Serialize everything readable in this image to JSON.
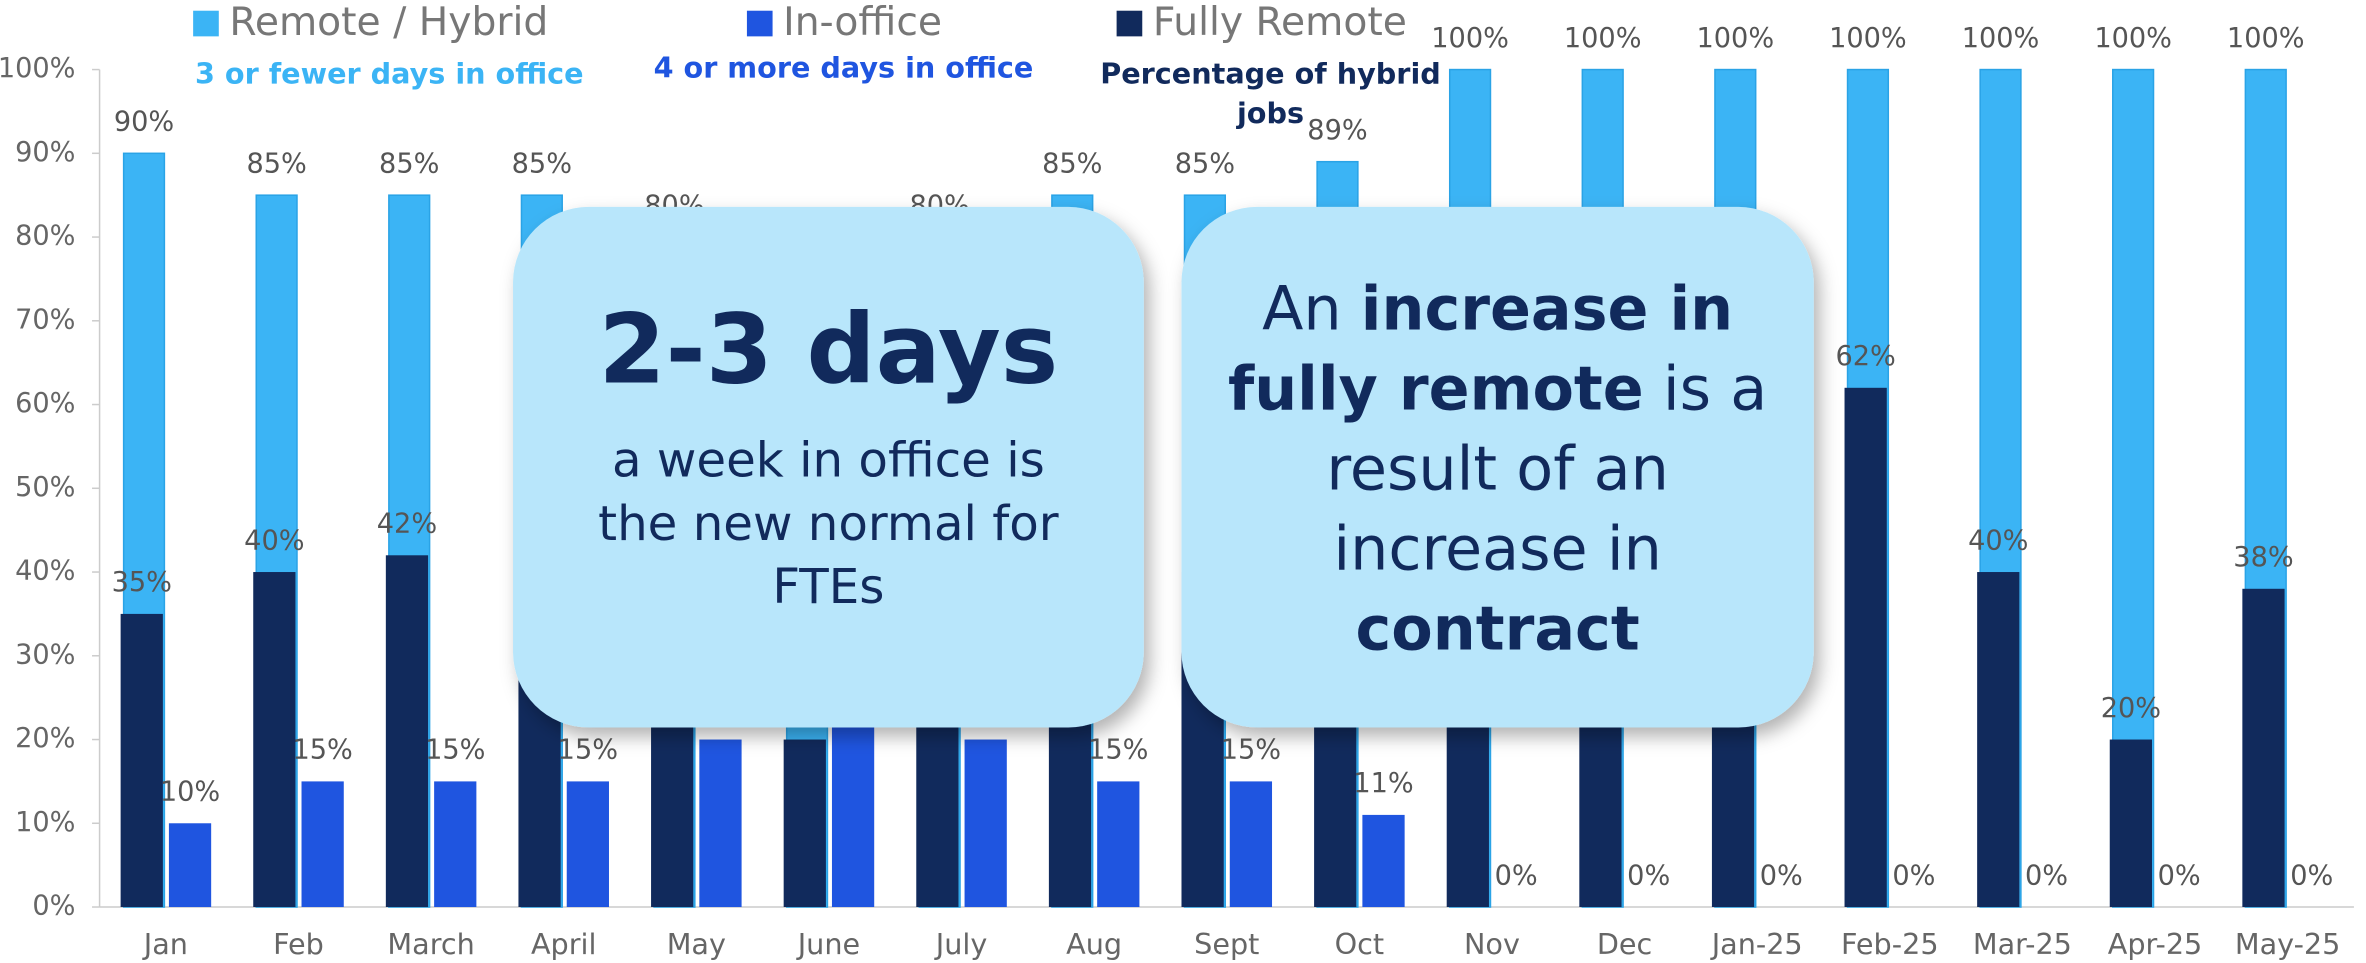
{
  "chart_data": {
    "type": "bar",
    "categories": [
      "Jan",
      "Feb",
      "March",
      "April",
      "May",
      "June",
      "July",
      "Aug",
      "Sept",
      "Oct",
      "Nov",
      "Dec",
      "Jan-25",
      "Feb-25",
      "Mar-25",
      "Apr-25",
      "May-25"
    ],
    "series": [
      {
        "name": "Remote / Hybrid",
        "sublabel": [
          "3 or fewer days in office"
        ],
        "color": "#3bb4f5",
        "layer": "back",
        "values": [
          90,
          85,
          85,
          85,
          80,
          80,
          80,
          85,
          85,
          89,
          100,
          100,
          100,
          100,
          100,
          100,
          100
        ],
        "value_labels": [
          "90%",
          "85%",
          "85%",
          "85%",
          "80%",
          null,
          "80%",
          "85%",
          "85%",
          "89%",
          "100%",
          "100%",
          "100%",
          "100%",
          "100%",
          "100%",
          "100%"
        ]
      },
      {
        "name": "In-office",
        "sublabel": [
          "4 or more days in office"
        ],
        "color": "#1f55e0",
        "layer": "side",
        "values": [
          10,
          15,
          15,
          15,
          20,
          22,
          20,
          15,
          15,
          11,
          0,
          0,
          0,
          0,
          0,
          0,
          0
        ],
        "value_labels": [
          "10%",
          "15%",
          "15%",
          "15%",
          null,
          null,
          null,
          "15%",
          "15%",
          "11%",
          "0%",
          "0%",
          "0%",
          "0%",
          "0%",
          "0%",
          "0%"
        ]
      },
      {
        "name": "Fully Remote",
        "sublabel": [
          "Percentage of hybrid",
          "jobs"
        ],
        "color": "#112a5c",
        "layer": "front",
        "values": [
          35,
          40,
          42,
          40,
          40,
          20,
          40,
          40,
          40,
          40,
          45,
          45,
          45,
          62,
          40,
          20,
          38
        ],
        "value_labels": [
          "35%",
          "40%",
          "42%",
          null,
          null,
          null,
          null,
          null,
          null,
          null,
          null,
          null,
          null,
          "62%",
          "40%",
          "20%",
          "38%"
        ]
      }
    ],
    "ylim": [
      0,
      100
    ],
    "yticks": [
      {
        "value": 0,
        "label": "0%"
      },
      {
        "value": 10,
        "label": "10%"
      },
      {
        "value": 20,
        "label": "20%"
      },
      {
        "value": 30,
        "label": "30%"
      },
      {
        "value": 40,
        "label": "40%"
      },
      {
        "value": 50,
        "label": "50%"
      },
      {
        "value": 60,
        "label": "60%"
      },
      {
        "value": 70,
        "label": "70%"
      },
      {
        "value": 80,
        "label": "80%"
      },
      {
        "value": 90,
        "label": "90%"
      },
      {
        "value": 100,
        "label": "100%"
      }
    ],
    "annotations": [
      {
        "headline": "2-3 days",
        "lines": [
          "a week in office is",
          "the new normal for",
          "FTEs"
        ]
      },
      {
        "lines": [
          [
            {
              "text": "An ",
              "bold": false
            },
            {
              "text": "increase in",
              "bold": true
            }
          ],
          [
            {
              "text": "fully remote",
              "bold": true
            },
            {
              "text": " is a",
              "bold": false
            }
          ],
          [
            {
              "text": "result of an",
              "bold": false
            }
          ],
          [
            {
              "text": "increase in",
              "bold": false
            }
          ],
          [
            {
              "text": "contract",
              "bold": true
            }
          ]
        ]
      }
    ]
  }
}
